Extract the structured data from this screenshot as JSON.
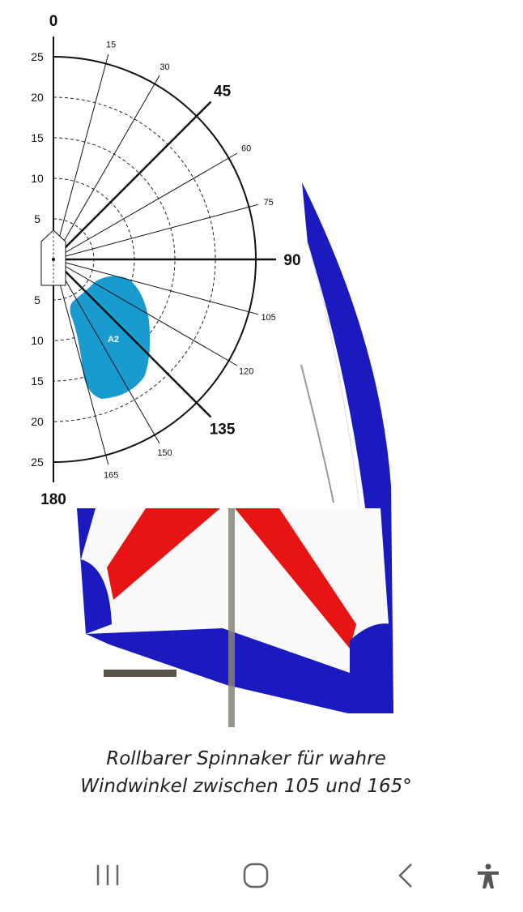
{
  "polar": {
    "angle_labels": [
      0,
      15,
      30,
      45,
      60,
      75,
      90,
      105,
      120,
      135,
      150,
      165,
      180
    ],
    "major_angles": [
      0,
      45,
      90,
      135,
      180
    ],
    "scale_upper": [
      25,
      20,
      15,
      10,
      5
    ],
    "scale_lower": [
      5,
      10,
      15,
      20,
      25
    ],
    "region_label": "A2"
  },
  "caption": {
    "line1": "Rollbarer Spinnaker für wahre",
    "line2": "Windwinkel zwischen 105 und 165°"
  }
}
